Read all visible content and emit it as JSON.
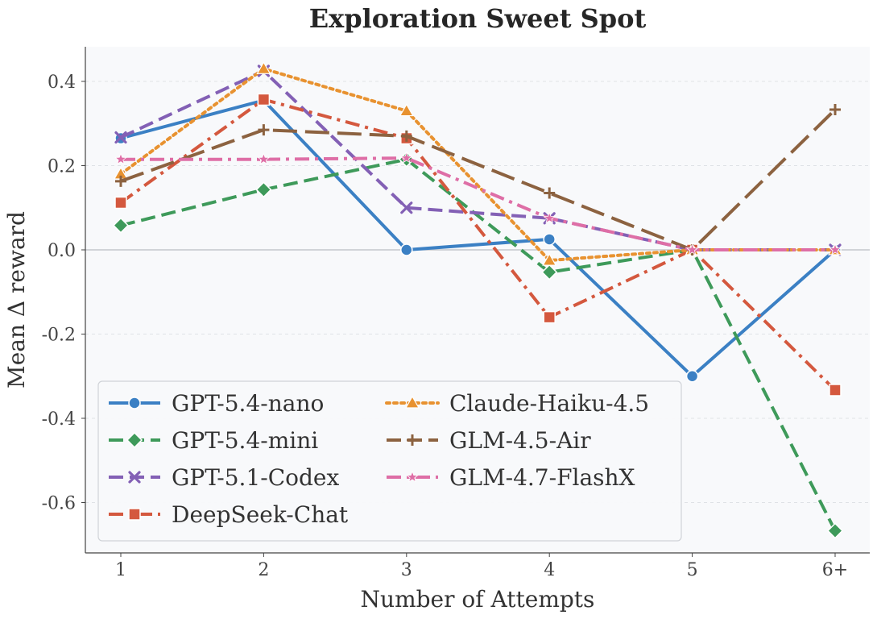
{
  "chart_data": {
    "type": "line",
    "title": "Exploration Sweet Spot",
    "xlabel": "Number of Attempts",
    "ylabel": "Mean Δ reward",
    "categories": [
      "1",
      "2",
      "3",
      "4",
      "5",
      "6+"
    ],
    "ylim": [
      -0.72,
      0.48
    ],
    "yticks": [
      0.4,
      0.2,
      0.0,
      -0.2,
      -0.4,
      -0.6
    ],
    "ytick_labels": [
      "0.4",
      "0.2",
      "0.0",
      "-0.2",
      "-0.4",
      "-0.6"
    ],
    "grid": "horizontal dashed",
    "zero_line": true,
    "legend_position": "lower-left",
    "legend_columns": 2,
    "series": [
      {
        "name": "GPT-5.4-nano",
        "color": "#3b80c4",
        "marker": "circle",
        "dash": "solid",
        "values": [
          0.265,
          0.355,
          0.0,
          0.025,
          -0.3,
          0.0
        ]
      },
      {
        "name": "GPT-5.4-mini",
        "color": "#3e9a5a",
        "marker": "diamond",
        "dash": "dashed",
        "values": [
          0.058,
          0.143,
          0.215,
          -0.053,
          0.0,
          -0.667
        ]
      },
      {
        "name": "GPT-5.1-Codex",
        "color": "#8360b5",
        "marker": "x",
        "dash": "dashed",
        "values": [
          0.267,
          0.425,
          0.1,
          0.075,
          0.0,
          0.0
        ]
      },
      {
        "name": "DeepSeek-Chat",
        "color": "#d4583e",
        "marker": "square",
        "dash": "dashdot",
        "values": [
          0.112,
          0.357,
          0.265,
          -0.16,
          0.0,
          -0.333
        ]
      },
      {
        "name": "Claude-Haiku-4.5",
        "color": "#e89230",
        "marker": "triangle",
        "dash": "dotted",
        "values": [
          0.18,
          0.43,
          0.33,
          -0.025,
          0.0,
          0.0
        ]
      },
      {
        "name": "GLM-4.5-Air",
        "color": "#8c6240",
        "marker": "plus",
        "dash": "longdash",
        "values": [
          0.163,
          0.285,
          0.27,
          0.135,
          0.0,
          0.333
        ]
      },
      {
        "name": "GLM-4.7-FlashX",
        "color": "#de6ea6",
        "marker": "star",
        "dash": "dashdot",
        "values": [
          0.215,
          0.215,
          0.218,
          0.075,
          0.0,
          0.0
        ]
      }
    ]
  }
}
